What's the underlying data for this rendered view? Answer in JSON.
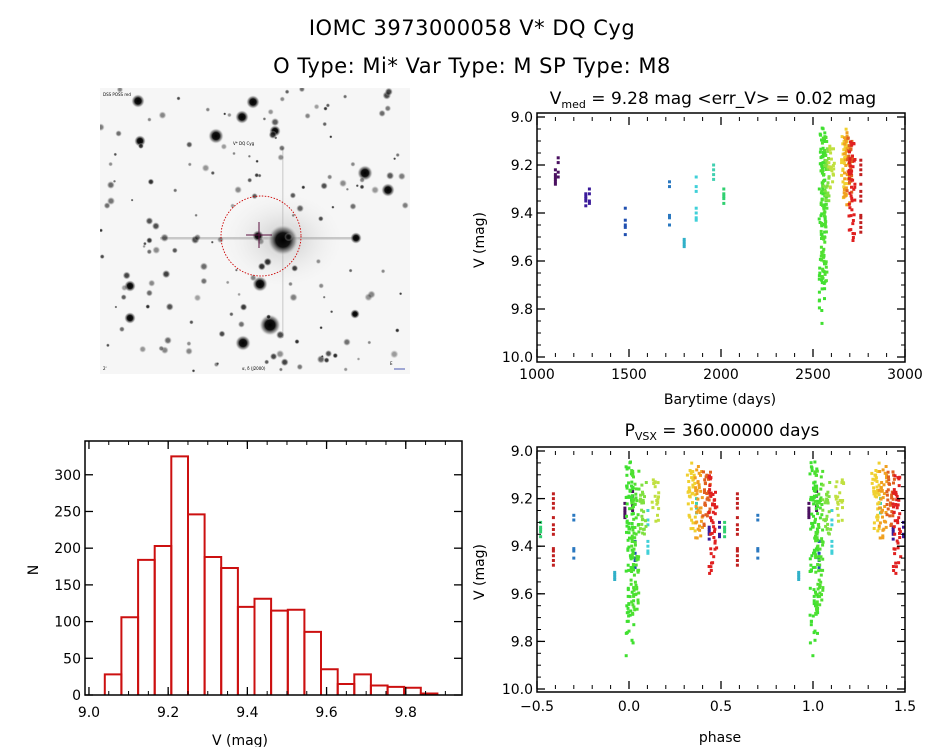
{
  "header": {
    "title_line1": "IOMC 3973000058    V* DQ Cyg",
    "title_line2": "O Type: Mi*   Var Type: M   SP Type: M8"
  },
  "sky_image": {
    "label_top_left": "DSS POSS red",
    "label_target": "V* DQ Cyg",
    "label_bottom_left": "2'",
    "label_bottom_center": "α, δ (J2000)",
    "label_bottom_right": "E",
    "circle_color": "#cc0000",
    "marker_color": "#5a1040"
  },
  "chart_data": [
    {
      "type": "scatter",
      "name": "light-curve",
      "title": "V_med = 9.28 mag <err_V> = 0.02 mag",
      "title_main": "V",
      "title_sub": "med",
      "title_rest": " = 9.28 mag <err_V> = 0.02 mag",
      "xlabel": "Barytime (days)",
      "ylabel": "V (mag)",
      "xlim": [
        1000,
        3000
      ],
      "ylim": [
        10.0,
        9.0
      ],
      "y_inverted": true,
      "xticks": [
        1000,
        1500,
        2000,
        2500,
        3000
      ],
      "yticks": [
        9.0,
        9.2,
        9.4,
        9.6,
        9.8,
        10.0
      ],
      "ytick_labels": [
        "9.0",
        "9.2",
        "9.4",
        "9.6",
        "9.8",
        "10.0"
      ],
      "groups": [
        {
          "t": 1100,
          "color": "#4a1060",
          "v": [
            9.24,
            9.26,
            9.28,
            9.22,
            9.25,
            9.27
          ]
        },
        {
          "t": 1115,
          "color": "#4a1060",
          "v": [
            9.17,
            9.19,
            9.23,
            9.25
          ]
        },
        {
          "t": 1265,
          "color": "#3a1a9a",
          "v": [
            9.32,
            9.34,
            9.35,
            9.37,
            9.33
          ]
        },
        {
          "t": 1285,
          "color": "#3a1a9a",
          "v": [
            9.3,
            9.32,
            9.35,
            9.36
          ]
        },
        {
          "t": 1480,
          "color": "#2050b0",
          "v": [
            9.38,
            9.43,
            9.45,
            9.46,
            9.49
          ]
        },
        {
          "t": 1720,
          "color": "#2a78c0",
          "v": [
            9.27,
            9.29,
            9.41,
            9.42,
            9.45
          ]
        },
        {
          "t": 1800,
          "color": "#30b0c8",
          "v": [
            9.51,
            9.52,
            9.53,
            9.54
          ]
        },
        {
          "t": 1865,
          "color": "#40d0d8",
          "v": [
            9.25,
            9.29,
            9.31,
            9.38,
            9.4,
            9.42,
            9.43
          ]
        },
        {
          "t": 1960,
          "color": "#40d0b0",
          "v": [
            9.2,
            9.22,
            9.24,
            9.26
          ]
        },
        {
          "t": 2015,
          "color": "#30d070",
          "v": [
            9.3,
            9.32,
            9.33,
            9.34,
            9.36
          ]
        },
        {
          "t": 2550,
          "color": "#40e030",
          "range": [
            9.04,
            9.83
          ],
          "n": 90,
          "tail": [
            9.86
          ]
        },
        {
          "t": 2560,
          "color": "#50e030",
          "range": [
            9.08,
            9.7
          ],
          "n": 70
        },
        {
          "t": 2575,
          "color": "#80e040",
          "range": [
            9.13,
            9.35
          ],
          "n": 25
        },
        {
          "t": 2600,
          "color": "#c0e040",
          "range": [
            9.12,
            9.32
          ],
          "n": 20
        },
        {
          "t": 2670,
          "color": "#f0d030",
          "range": [
            9.05,
            9.34
          ],
          "n": 35
        },
        {
          "t": 2685,
          "color": "#f0a020",
          "range": [
            9.06,
            9.37
          ],
          "n": 35
        },
        {
          "t": 2700,
          "color": "#e06020",
          "range": [
            9.08,
            9.32
          ],
          "n": 30
        },
        {
          "t": 2712,
          "color": "#e02020",
          "range": [
            9.09,
            9.53
          ],
          "n": 45
        },
        {
          "t": 2760,
          "color": "#c02020",
          "v": [
            9.18,
            9.2,
            9.22,
            9.24,
            9.28,
            9.31,
            9.33,
            9.35,
            9.41,
            9.42,
            9.44,
            9.46,
            9.48
          ]
        }
      ]
    },
    {
      "type": "bar",
      "name": "histogram",
      "title": "",
      "xlabel": "V (mag)",
      "ylabel": "N",
      "xlim": [
        9.0,
        9.95
      ],
      "ylim": [
        0,
        340
      ],
      "xticks": [
        9.0,
        9.2,
        9.4,
        9.6,
        9.8
      ],
      "xtick_labels": [
        "9.0",
        "9.2",
        "9.4",
        "9.6",
        "9.8"
      ],
      "yticks": [
        0,
        50,
        100,
        150,
        200,
        250,
        300
      ],
      "bar_color": "#cc1010",
      "bin_start": 9.04,
      "bin_width": 0.042,
      "values": [
        28,
        106,
        184,
        203,
        325,
        246,
        188,
        173,
        120,
        131,
        115,
        116,
        86,
        35,
        15,
        28,
        13,
        11,
        10,
        2
      ]
    },
    {
      "type": "scatter",
      "name": "phase-curve",
      "title_main": "P",
      "title_sub": "VSX",
      "title_rest": " = 360.00000 days",
      "xlabel": "phase",
      "ylabel": "V (mag)",
      "period_days": 360.0,
      "xlim": [
        -0.5,
        1.5
      ],
      "ylim": [
        10.0,
        9.0
      ],
      "y_inverted": true,
      "xticks": [
        -0.5,
        0.0,
        0.5,
        1.0,
        1.5
      ],
      "xtick_labels": [
        "-0.5",
        "0.0",
        "0.5",
        "1.0",
        "1.5"
      ],
      "yticks": [
        9.0,
        9.2,
        9.4,
        9.6,
        9.8,
        10.0
      ],
      "ytick_labels": [
        "9.0",
        "9.2",
        "9.4",
        "9.6",
        "9.8",
        "10.0"
      ]
    }
  ]
}
